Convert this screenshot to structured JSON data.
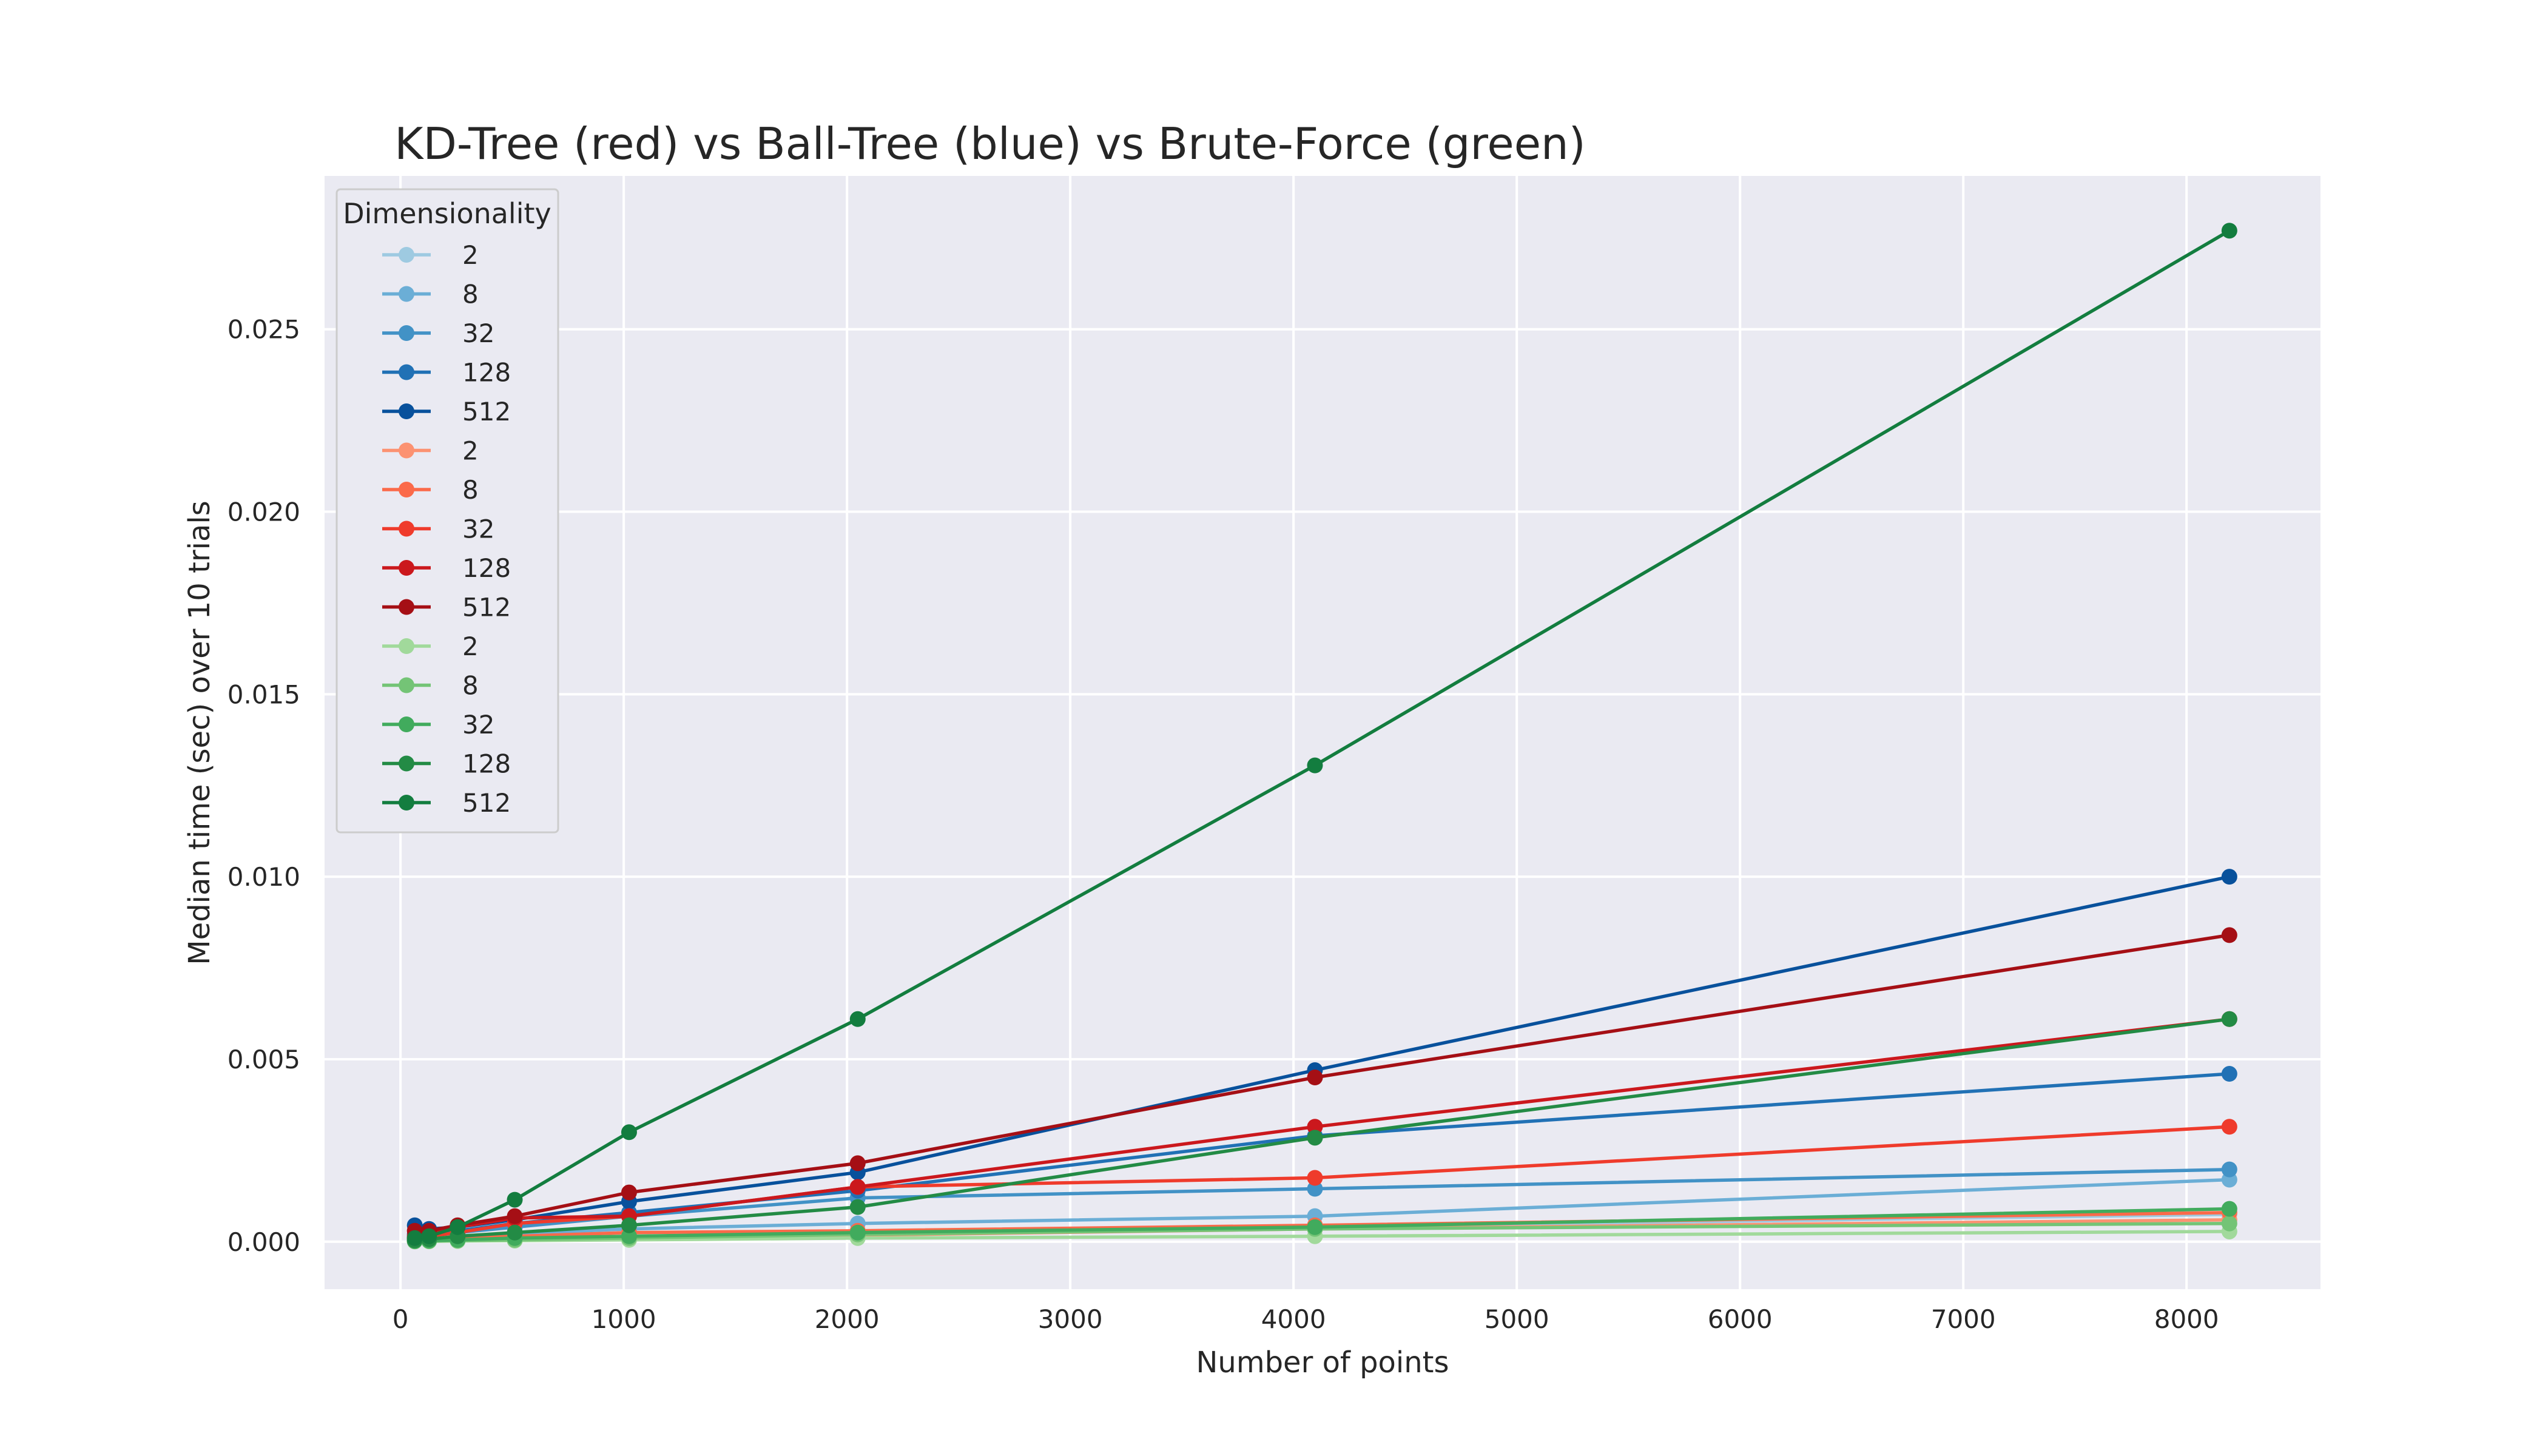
{
  "chart_data": {
    "type": "line",
    "title": "KD-Tree (red) vs Ball-Tree (blue) vs Brute-Force (green)",
    "xlabel": "Number of points",
    "ylabel": "Median time (sec) over 10 trials",
    "xlim": [
      -340,
      8600
    ],
    "ylim": [
      -0.0013,
      0.0292
    ],
    "x_ticks": [
      0,
      1000,
      2000,
      3000,
      4000,
      5000,
      6000,
      7000,
      8000
    ],
    "y_ticks": [
      0.0,
      0.005,
      0.01,
      0.015,
      0.02,
      0.025
    ],
    "x_tick_labels": [
      "0",
      "1000",
      "2000",
      "3000",
      "4000",
      "5000",
      "6000",
      "7000",
      "8000"
    ],
    "y_tick_labels": [
      "0.000",
      "0.005",
      "0.010",
      "0.015",
      "0.020",
      "0.025"
    ],
    "grid": true,
    "legend": {
      "title": "Dimensionality",
      "position": "top-left"
    },
    "x": [
      64,
      128,
      256,
      512,
      1024,
      2048,
      4096,
      8192
    ],
    "series": [
      {
        "name": "2",
        "color": "#9ecae1",
        "values": [
          2e-05,
          3e-05,
          5e-05,
          8e-05,
          0.00014,
          0.00026,
          0.0004,
          0.00075
        ]
      },
      {
        "name": "8",
        "color": "#6baed6",
        "values": [
          5e-05,
          8e-05,
          0.00013,
          0.00022,
          0.00035,
          0.0005,
          0.0007,
          0.0017
        ]
      },
      {
        "name": "32",
        "color": "#4292c6",
        "values": [
          0.0001,
          0.00015,
          0.00025,
          0.0004,
          0.0007,
          0.0012,
          0.00145,
          0.00198
        ]
      },
      {
        "name": "128",
        "color": "#2171b5",
        "values": [
          0.0002,
          0.0002,
          0.0003,
          0.0005,
          0.0008,
          0.0014,
          0.0029,
          0.0046
        ]
      },
      {
        "name": "512",
        "color": "#08519c",
        "values": [
          0.00045,
          0.00035,
          0.0004,
          0.0006,
          0.0011,
          0.0019,
          0.0047,
          0.01
        ]
      },
      {
        "name": "2",
        "color": "#fc9272",
        "values": [
          1e-05,
          2e-05,
          4e-05,
          6e-05,
          0.0001,
          0.00018,
          0.00035,
          0.0006
        ]
      },
      {
        "name": "8",
        "color": "#fb6a4a",
        "values": [
          3e-05,
          5e-05,
          9e-05,
          0.00015,
          0.00025,
          0.0003,
          0.00045,
          0.0008
        ]
      },
      {
        "name": "32",
        "color": "#ef3b2c",
        "values": [
          0.0001,
          0.00015,
          0.00025,
          0.0005,
          0.0007,
          0.0015,
          0.00175,
          0.00315
        ]
      },
      {
        "name": "128",
        "color": "#cb181d",
        "values": [
          0.00015,
          0.00025,
          0.0004,
          0.00065,
          0.0007,
          0.0015,
          0.00315,
          0.0061
        ]
      },
      {
        "name": "512",
        "color": "#a50f15",
        "values": [
          0.0003,
          0.0003,
          0.00045,
          0.0007,
          0.00135,
          0.00215,
          0.0045,
          0.0084
        ]
      },
      {
        "name": "2",
        "color": "#a1d99b",
        "values": [
          1e-05,
          1e-05,
          2e-05,
          3e-05,
          5e-05,
          0.0001,
          0.00015,
          0.00028
        ]
      },
      {
        "name": "8",
        "color": "#74c476",
        "values": [
          1e-05,
          2e-05,
          3e-05,
          5e-05,
          0.0001,
          0.0002,
          0.00035,
          0.0005
        ]
      },
      {
        "name": "32",
        "color": "#41ab5d",
        "values": [
          2e-05,
          3e-05,
          5e-05,
          0.0001,
          0.00015,
          0.00025,
          0.0004,
          0.0009
        ]
      },
      {
        "name": "128",
        "color": "#238b45",
        "values": [
          4e-05,
          7e-05,
          0.00015,
          0.00025,
          0.00045,
          0.00095,
          0.00285,
          0.0061
        ]
      },
      {
        "name": "512",
        "color": "#137d3f",
        "values": [
          0.0001,
          0.00015,
          0.0004,
          0.00115,
          0.003,
          0.0061,
          0.01305,
          0.0277
        ]
      }
    ]
  }
}
